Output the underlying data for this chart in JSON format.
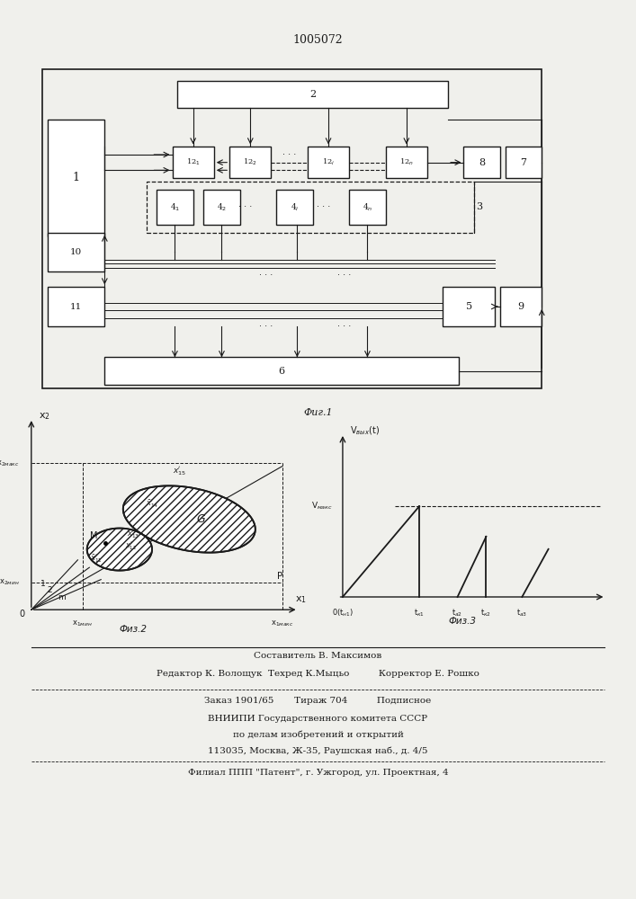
{
  "title": "1005072",
  "fig1_label": "Фиг.1",
  "fig2_label": "Физ.2",
  "fig3_label": "Физ.3",
  "bg_color": "#f0f0ec",
  "line_color": "#1a1a1a",
  "footer_lines": [
    "Составитель В. Максимов",
    "Редактор К. Волощук  Техред К.Мыцьо          Корректор Е. Рошко",
    "Заказ 1901/65       Тираж 704          Подписное",
    "ВНИИПИ Государственного комитета СССР",
    "по делам изобретений и открытий",
    "113035, Москва, Ж-35, Раушская наб., д. 4/5",
    "Филиал ППП \"Патент\", г. Ужгород, ул. Проектная, 4"
  ]
}
